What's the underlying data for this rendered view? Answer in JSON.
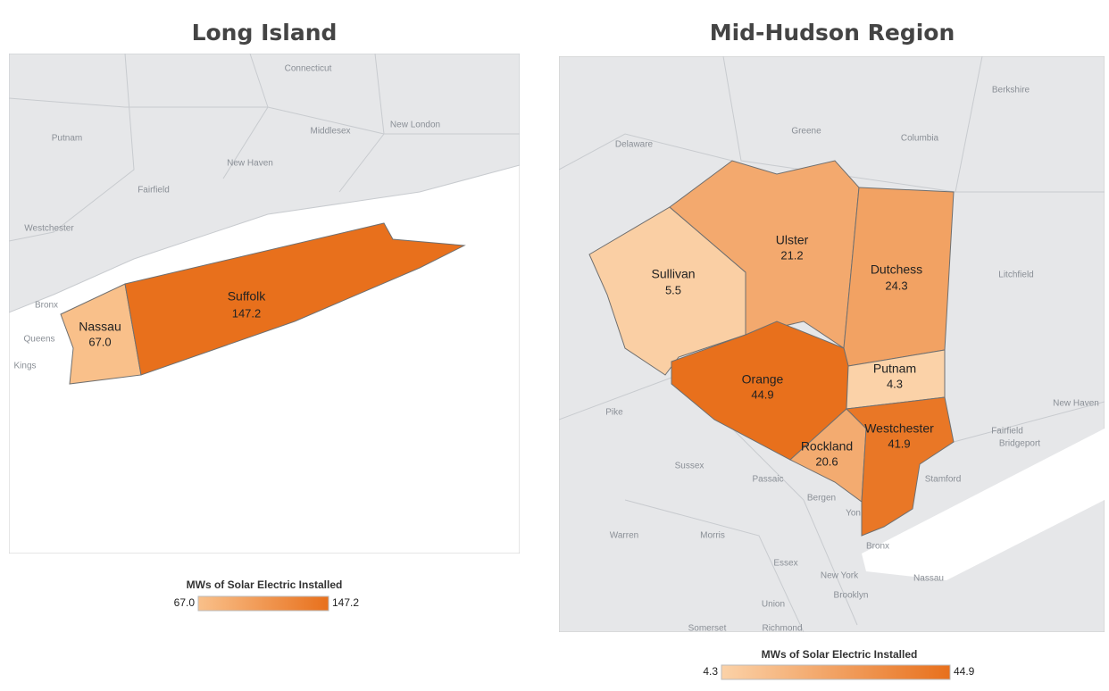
{
  "maps": [
    {
      "title": "Long Island",
      "legend": {
        "title": "MWs of Solar Electric Installed",
        "min": {
          "value": 67,
          "label": "67.0"
        },
        "max": 147.2,
        "low_color": "#f9c08a",
        "high_color": "#e8701c"
      },
      "regions": [
        {
          "name": "Nassau",
          "value": 67,
          "value_label": "67.0"
        },
        {
          "name": "Suffolk",
          "value": 147.2
        }
      ],
      "places": [
        "Connecticut",
        "Putnam",
        "Middlesex",
        "New London",
        "New Haven",
        "Fairfield",
        "Westchester",
        "Bronx",
        "Queens",
        "Kings"
      ]
    },
    {
      "title": "Mid-Hudson Region",
      "legend": {
        "title": "MWs of Solar Electric Installed",
        "min": 4.3,
        "max": 44.9,
        "low_color": "#fbd2a8",
        "high_color": "#e8701c"
      },
      "regions": [
        {
          "name": "Sullivan",
          "value": 5.5
        },
        {
          "name": "Ulster",
          "value": 21.2
        },
        {
          "name": "Dutchess",
          "value": 24.3
        },
        {
          "name": "Orange",
          "value": 44.9
        },
        {
          "name": "Putnam",
          "value": 4.3
        },
        {
          "name": "Rockland",
          "value": 20.6
        },
        {
          "name": "Westchester",
          "value": 41.9
        }
      ],
      "places": [
        "Delaware",
        "Greene",
        "Columbia",
        "Berkshire",
        "Litchfield",
        "Pike",
        "Sussex",
        "Passaic",
        "Bergen",
        "Warren",
        "Morris",
        "Essex",
        "New York",
        "Brooklyn",
        "Union",
        "Nassau",
        "Fairfield",
        "Bridgeport",
        "New Haven",
        "Stamford",
        "Yonkers",
        "Bronx",
        "Somerset",
        "Richmond"
      ]
    }
  ]
}
